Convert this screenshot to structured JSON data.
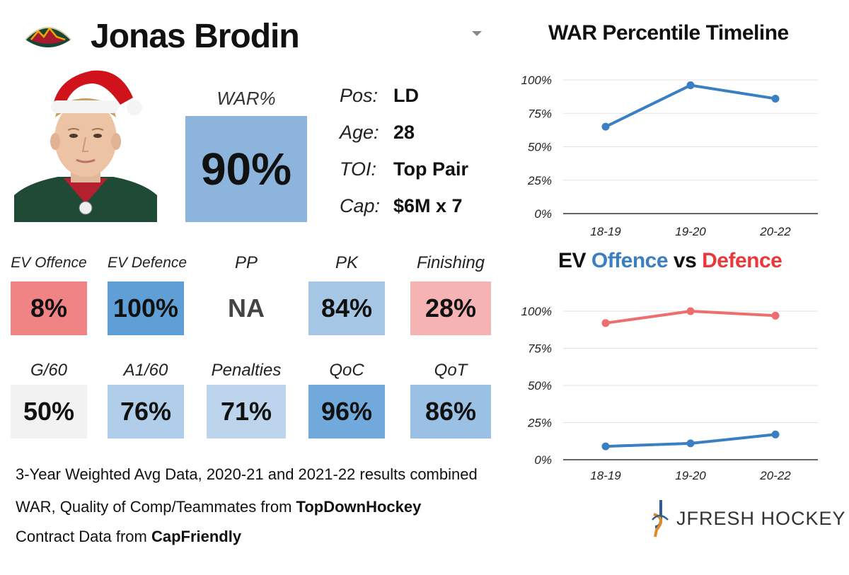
{
  "player": {
    "name": "Jonas Brodin",
    "war_label": "WAR%",
    "war_value": "90%",
    "war_color": "#8db4dc",
    "info": [
      {
        "key": "Pos:",
        "value": "LD"
      },
      {
        "key": "Age:",
        "value": "28"
      },
      {
        "key": "TOI:",
        "value": "Top Pair"
      },
      {
        "key": "Cap:",
        "value": "$6M x 7"
      }
    ]
  },
  "tiles_row1": [
    {
      "label": "EV Offence",
      "value": "8%",
      "color": "#f08383"
    },
    {
      "label": "EV Defence",
      "value": "100%",
      "color": "#5f9fd6"
    },
    {
      "label": "PP",
      "value": "NA",
      "color": "#ffffff"
    },
    {
      "label": "PK",
      "value": "84%",
      "color": "#a6c6e6"
    },
    {
      "label": "Finishing",
      "value": "28%",
      "color": "#f5b3b3"
    }
  ],
  "tiles_row2": [
    {
      "label": "G/60",
      "value": "50%",
      "color": "#f2f2f2"
    },
    {
      "label": "A1/60",
      "value": "76%",
      "color": "#b0cde9"
    },
    {
      "label": "Penalties",
      "value": "71%",
      "color": "#bcd4ec"
    },
    {
      "label": "QoC",
      "value": "96%",
      "color": "#72a9dc"
    },
    {
      "label": "QoT",
      "value": "86%",
      "color": "#9ac0e4"
    }
  ],
  "footer": {
    "line1": "3-Year Weighted Avg Data, 2020-21 and 2021-22 results combined",
    "line2_prefix": "WAR, Quality of Comp/Teammates from ",
    "line2_source": "TopDownHockey",
    "line3_prefix": "Contract Data from ",
    "line3_source": "CapFriendly"
  },
  "brand": {
    "name": "JFRESH HOCKEY"
  },
  "chart_data": [
    {
      "type": "line",
      "title": "WAR Percentile Timeline",
      "categories": [
        "18-19",
        "19-20",
        "20-22"
      ],
      "series": [
        {
          "name": "WAR",
          "values": [
            65,
            96,
            86
          ],
          "color": "#3a7fc2"
        }
      ],
      "ylim": [
        0,
        100
      ],
      "yticks": [
        "0%",
        "25%",
        "50%",
        "75%",
        "100%"
      ],
      "xlabel": "",
      "ylabel": ""
    },
    {
      "type": "line",
      "title_parts": [
        "EV ",
        "Offence",
        " vs ",
        "Defence"
      ],
      "title_colors": [
        "#111111",
        "#3a7fc2",
        "#111111",
        "#e8383a"
      ],
      "categories": [
        "18-19",
        "19-20",
        "20-22"
      ],
      "series": [
        {
          "name": "Defence",
          "values": [
            92,
            100,
            97
          ],
          "color": "#ec6e6e"
        },
        {
          "name": "Offence",
          "values": [
            9,
            11,
            17
          ],
          "color": "#3a7fc2"
        }
      ],
      "ylim": [
        0,
        100
      ],
      "yticks": [
        "0%",
        "25%",
        "50%",
        "75%",
        "100%"
      ],
      "xlabel": "",
      "ylabel": ""
    }
  ]
}
